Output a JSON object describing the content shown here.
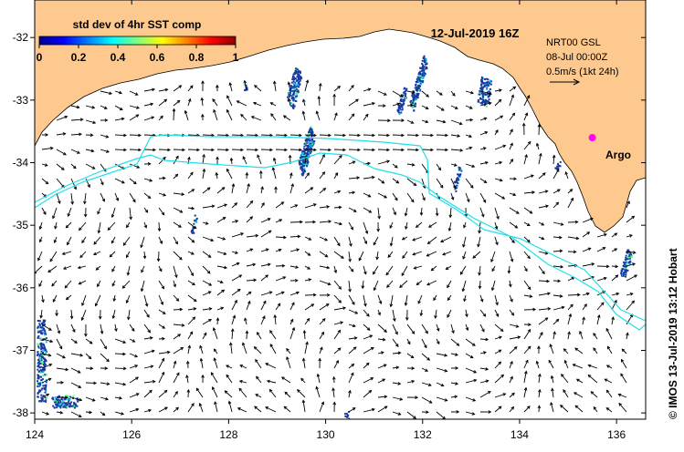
{
  "map": {
    "title": "12-Jul-2019 16Z",
    "colorbar": {
      "label": "std dev of 4hr SST comp",
      "ticks": [
        "0",
        "0.2",
        "0.4",
        "0.6",
        "0.8",
        "1"
      ],
      "colors": [
        "#00008b",
        "#0000ff",
        "#0080ff",
        "#00ffff",
        "#80ff80",
        "#ffff00",
        "#ff8000",
        "#ff0000",
        "#8b0000"
      ]
    },
    "legend": {
      "line1": "NRT00 GSL",
      "line2": "08-Jul 00:00Z",
      "line3": "0.5m/s (1kt 24h)"
    },
    "marker": {
      "label": "Argo",
      "color": "#ff00ff",
      "lon": 135.5,
      "lat": -33.6
    },
    "credit": "© IMOS 13-Jul-2019 13:12 Hobart",
    "lon_ticks": [
      "124",
      "126",
      "128",
      "130",
      "132",
      "134",
      "136"
    ],
    "lat_ticks": [
      "-32",
      "-33",
      "-34",
      "-35",
      "-36",
      "-37",
      "-38"
    ],
    "lon_range": [
      124,
      136.6
    ],
    "lat_range": [
      -38.1,
      -31.4
    ],
    "land_color": "#fdc98f",
    "contour_color": "#20e0e8",
    "noise_color": "#1a3aa0"
  }
}
